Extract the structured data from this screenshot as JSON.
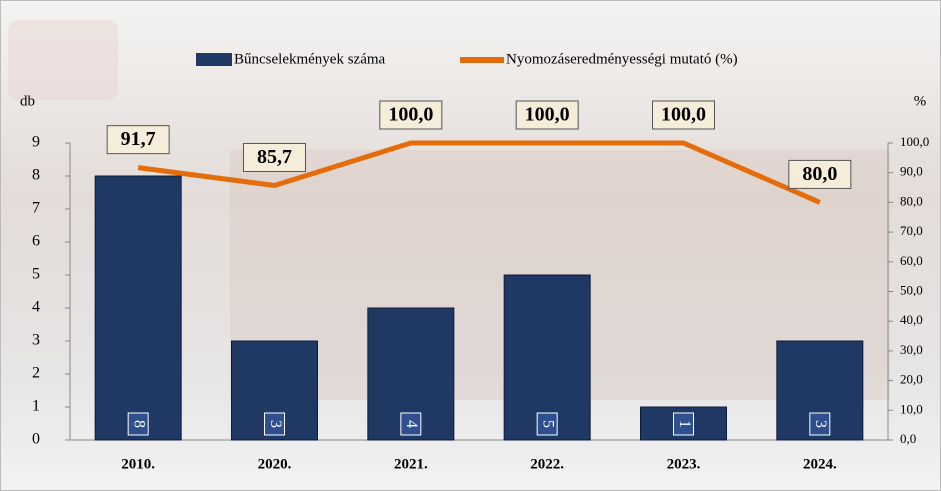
{
  "chart_data": {
    "type": "bar-line",
    "categories": [
      "2010.",
      "2020.",
      "2021.",
      "2022.",
      "2023.",
      "2024."
    ],
    "series": [
      {
        "name": "Bűncselekmények száma",
        "color": "#1f3864",
        "values": [
          8,
          3,
          4,
          5,
          1,
          3
        ]
      },
      {
        "name": "Nyomozáseredményességi mutató (%)",
        "color": "#e46c0a",
        "axis": "y2",
        "values": [
          91.7,
          85.7,
          100,
          100,
          100,
          80
        ],
        "value_labels": [
          "91,7",
          "85,7",
          "100,0",
          "100,0",
          "100,0",
          "80,0"
        ]
      }
    ],
    "ylabel": "db",
    "y2label": "%",
    "ylim": [
      0,
      9
    ],
    "yticks": [
      0,
      1,
      2,
      3,
      4,
      5,
      6,
      7,
      8,
      9
    ],
    "y2lim": [
      0,
      100
    ],
    "y2ticks": [
      {
        "value": 0,
        "label": "0,0"
      },
      {
        "value": 10,
        "label": "10,0"
      },
      {
        "value": 20,
        "label": "20,0"
      },
      {
        "value": 30,
        "label": "30,0"
      },
      {
        "value": 40,
        "label": "40,0"
      },
      {
        "value": 50,
        "label": "50,0"
      },
      {
        "value": 60,
        "label": "60,0"
      },
      {
        "value": 70,
        "label": "70,0"
      },
      {
        "value": 80,
        "label": "80,0"
      },
      {
        "value": 90,
        "label": "90,0"
      },
      {
        "value": 100,
        "label": "100,0"
      }
    ]
  }
}
